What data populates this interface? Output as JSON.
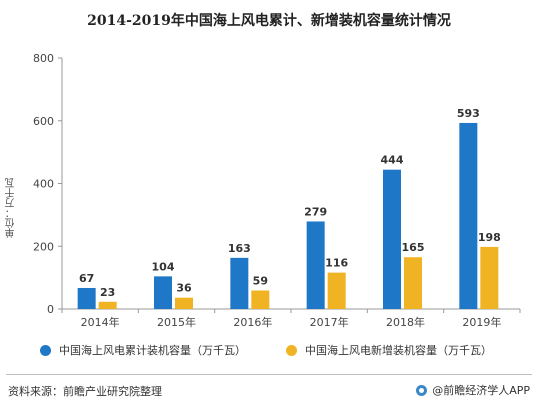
{
  "title": "2014-2019年中国海上风电累计、新增装机容量统计情况",
  "chart_data": {
    "type": "bar",
    "categories": [
      "2014年",
      "2015年",
      "2016年",
      "2017年",
      "2018年",
      "2019年"
    ],
    "series": [
      {
        "name": "中国海上风电累计装机容量（万千瓦）",
        "values": [
          67,
          104,
          163,
          279,
          444,
          593
        ],
        "color": "#1f77c8"
      },
      {
        "name": "中国海上风电新增装机容量（万千瓦）",
        "values": [
          23,
          36,
          59,
          116,
          165,
          198
        ],
        "color": "#f0b323"
      }
    ],
    "ylabel": "单位：万千瓦",
    "ylim": [
      0,
      800
    ],
    "yticks": [
      0,
      200,
      400,
      600,
      800
    ],
    "grid": false,
    "legend_position": "bottom"
  },
  "legend": [
    {
      "label": "中国海上风电累计装机容量（万千瓦）",
      "color": "#1f77c8"
    },
    {
      "label": "中国海上风电新增装机容量（万千瓦）",
      "color": "#f0b323"
    }
  ],
  "footer": {
    "source": "资料来源：前瞻产业研究院整理",
    "brand": "@前瞻经济学人APP"
  }
}
